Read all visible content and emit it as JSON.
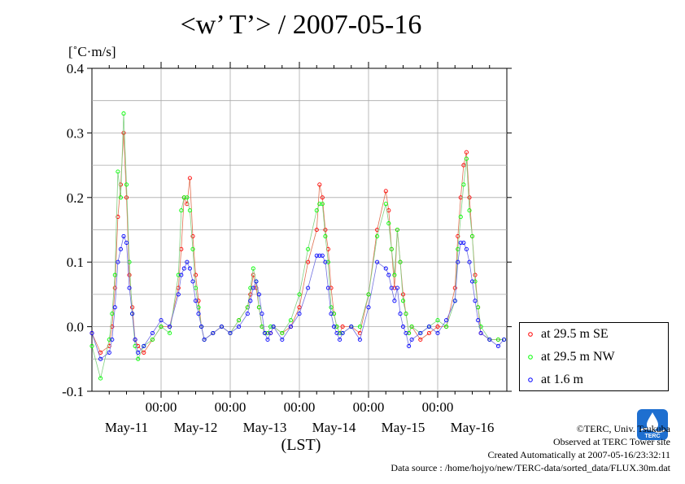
{
  "chart_data": {
    "type": "line",
    "title": "<w’ T’> / 2007-05-16",
    "ylabel": "[˚C·m/s]",
    "xlabel": "(LST)",
    "ylim": [
      -0.1,
      0.4
    ],
    "yticks": [
      "0.4",
      "0.3",
      "0.2",
      "0.1",
      "0.0",
      "-0.1"
    ],
    "x_midnight_labels": [
      "00:00",
      "00:00",
      "00:00",
      "00:00",
      "00:00"
    ],
    "day_labels": [
      "May-11",
      "May-12",
      "May-13",
      "May-14",
      "May-15",
      "May-16"
    ],
    "grid": true,
    "legend_position": "right",
    "series": [
      {
        "name": "at 29.5 m SE",
        "color": "#ff0000",
        "hours": [
          0,
          3,
          6,
          7,
          8,
          9,
          10,
          11,
          12,
          13,
          14,
          15,
          16,
          18,
          21,
          24,
          27,
          30,
          31,
          32,
          33,
          34,
          35,
          36,
          37,
          38,
          39,
          42,
          45,
          48,
          51,
          54,
          55,
          56,
          57,
          58,
          59,
          60,
          61,
          62,
          63,
          66,
          69,
          72,
          75,
          78,
          79,
          80,
          81,
          82,
          83,
          84,
          85,
          86,
          87,
          90,
          93,
          96,
          99,
          102,
          103,
          104,
          105,
          106,
          107,
          108,
          109,
          110,
          111,
          114,
          117,
          120,
          123,
          126,
          127,
          128,
          129,
          130,
          131,
          132,
          133,
          134,
          135,
          138,
          141,
          143
        ],
        "values": [
          -0.01,
          -0.04,
          -0.03,
          0.0,
          0.06,
          0.17,
          0.22,
          0.3,
          0.2,
          0.08,
          0.03,
          -0.02,
          -0.03,
          -0.04,
          -0.02,
          0.0,
          0.0,
          0.06,
          0.12,
          0.2,
          0.19,
          0.23,
          0.14,
          0.08,
          0.04,
          0.0,
          -0.02,
          -0.01,
          0.0,
          -0.01,
          0.01,
          0.03,
          0.05,
          0.08,
          0.06,
          0.03,
          0.0,
          -0.01,
          -0.01,
          -0.01,
          0.0,
          -0.01,
          0.0,
          0.03,
          0.1,
          0.15,
          0.22,
          0.2,
          0.15,
          0.12,
          0.06,
          0.02,
          0.0,
          -0.01,
          0.0,
          0.0,
          -0.01,
          0.05,
          0.15,
          0.21,
          0.18,
          0.12,
          0.06,
          0.15,
          0.1,
          0.05,
          0.02,
          -0.01,
          0.0,
          -0.02,
          -0.01,
          0.0,
          0.0,
          0.06,
          0.14,
          0.2,
          0.25,
          0.27,
          0.2,
          0.14,
          0.08,
          0.03,
          -0.01,
          -0.02,
          -0.02,
          -0.02
        ]
      },
      {
        "name": "at 29.5 m NW",
        "color": "#00ff00",
        "hours": [
          0,
          3,
          6,
          7,
          8,
          9,
          10,
          11,
          12,
          13,
          14,
          15,
          16,
          18,
          21,
          24,
          27,
          30,
          31,
          32,
          33,
          34,
          35,
          36,
          37,
          38,
          39,
          42,
          45,
          48,
          51,
          54,
          55,
          56,
          57,
          58,
          59,
          60,
          61,
          62,
          63,
          66,
          69,
          72,
          75,
          78,
          79,
          80,
          81,
          82,
          83,
          84,
          85,
          86,
          87,
          90,
          93,
          96,
          99,
          102,
          103,
          104,
          105,
          106,
          107,
          108,
          109,
          110,
          111,
          114,
          117,
          120,
          123,
          126,
          127,
          128,
          129,
          130,
          131,
          132,
          133,
          134,
          135,
          138,
          141,
          143
        ],
        "values": [
          -0.03,
          -0.08,
          -0.02,
          0.02,
          0.08,
          0.24,
          0.2,
          0.33,
          0.22,
          0.1,
          0.02,
          -0.03,
          -0.05,
          -0.03,
          -0.02,
          0.0,
          -0.01,
          0.08,
          0.18,
          0.2,
          0.2,
          0.18,
          0.12,
          0.06,
          0.03,
          0.0,
          -0.02,
          -0.01,
          0.0,
          -0.01,
          0.01,
          0.03,
          0.06,
          0.09,
          0.07,
          0.03,
          0.0,
          -0.01,
          -0.01,
          0.0,
          0.0,
          -0.01,
          0.01,
          0.05,
          0.12,
          0.18,
          0.19,
          0.19,
          0.14,
          0.1,
          0.03,
          0.02,
          0.0,
          -0.01,
          -0.01,
          0.0,
          0.0,
          0.05,
          0.14,
          0.19,
          0.16,
          0.12,
          0.08,
          0.15,
          0.1,
          0.04,
          0.02,
          -0.01,
          0.0,
          -0.01,
          0.0,
          0.01,
          0.0,
          0.04,
          0.12,
          0.17,
          0.22,
          0.26,
          0.18,
          0.14,
          0.07,
          0.03,
          0.0,
          -0.02,
          -0.02,
          -0.02
        ]
      },
      {
        "name": "at 1.6 m",
        "color": "#0000ff",
        "hours": [
          0,
          3,
          6,
          7,
          8,
          9,
          10,
          11,
          12,
          13,
          14,
          15,
          16,
          18,
          21,
          24,
          27,
          30,
          31,
          32,
          33,
          34,
          35,
          36,
          37,
          38,
          39,
          42,
          45,
          48,
          51,
          54,
          55,
          56,
          57,
          58,
          59,
          60,
          61,
          62,
          63,
          66,
          69,
          72,
          75,
          78,
          79,
          80,
          81,
          82,
          83,
          84,
          85,
          86,
          87,
          90,
          93,
          96,
          99,
          102,
          103,
          104,
          105,
          106,
          107,
          108,
          109,
          110,
          111,
          114,
          117,
          120,
          123,
          126,
          127,
          128,
          129,
          130,
          131,
          132,
          133,
          134,
          135,
          138,
          141,
          143
        ],
        "values": [
          -0.01,
          -0.05,
          -0.04,
          -0.02,
          0.03,
          0.1,
          0.12,
          0.14,
          0.13,
          0.06,
          0.02,
          -0.02,
          -0.04,
          -0.03,
          -0.01,
          0.01,
          0.0,
          0.05,
          0.08,
          0.09,
          0.1,
          0.09,
          0.07,
          0.04,
          0.02,
          0.0,
          -0.02,
          -0.01,
          0.0,
          -0.01,
          0.0,
          0.02,
          0.04,
          0.06,
          0.07,
          0.05,
          0.02,
          -0.01,
          -0.02,
          -0.01,
          0.0,
          -0.02,
          0.0,
          0.02,
          0.06,
          0.11,
          0.11,
          0.11,
          0.1,
          0.06,
          0.02,
          0.0,
          -0.01,
          -0.02,
          -0.01,
          0.0,
          -0.02,
          0.03,
          0.1,
          0.09,
          0.08,
          0.06,
          0.04,
          0.06,
          0.02,
          0.0,
          -0.01,
          -0.03,
          -0.02,
          -0.01,
          0.0,
          -0.01,
          0.01,
          0.04,
          0.1,
          0.13,
          0.13,
          0.12,
          0.1,
          0.07,
          0.04,
          0.01,
          -0.01,
          -0.02,
          -0.03,
          -0.02
        ]
      }
    ]
  },
  "credits": {
    "copyright": "©TERC, Univ. Tsukuba",
    "observed": "Observed at TERC Tower site",
    "created": "Created Automatically at 2007-05-16/23:32:11",
    "source": "Data source : /home/hojyo/new/TERC-data/sorted_data/FLUX.30m.dat",
    "logo_text": "TERC"
  }
}
